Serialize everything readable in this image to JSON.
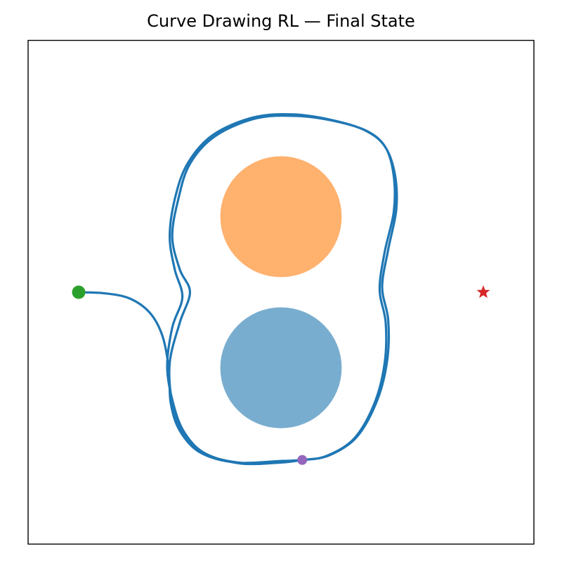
{
  "chart_data": {
    "type": "scatter",
    "title": "Curve Drawing RL — Final State",
    "xlabel": "",
    "ylabel": "",
    "xlim": [
      -5,
      5
    ],
    "ylim": [
      -5,
      5
    ],
    "grid": false,
    "axes_ticks": false,
    "colors": {
      "path": "#1f77b4",
      "obstacle_top": "#ffb16e",
      "obstacle_bottom": "#79adcf",
      "start": "#2ca02c",
      "agent": "#9467bd",
      "goal": "#d62728",
      "frame": "#000000"
    },
    "obstacles": [
      {
        "cx": 0.0,
        "cy": 1.5,
        "r": 1.2
      },
      {
        "cx": 0.0,
        "cy": -1.5,
        "r": 1.2
      }
    ],
    "start": {
      "x": -4.0,
      "y": 0.0
    },
    "goal": {
      "x": 4.0,
      "y": 0.0,
      "marker": "star"
    },
    "agent": {
      "x": 0.42,
      "y": -3.33
    },
    "path": [
      [
        -4.0,
        0.0
      ],
      [
        -3.5,
        -0.02
      ],
      [
        -3.0,
        -0.12
      ],
      [
        -2.6,
        -0.4
      ],
      [
        -2.35,
        -0.85
      ],
      [
        -2.22,
        -1.5
      ],
      [
        -2.18,
        -2.2
      ],
      [
        -2.0,
        -2.75
      ],
      [
        -1.6,
        -3.18
      ],
      [
        -0.9,
        -3.38
      ],
      [
        0.0,
        -3.35
      ],
      [
        0.42,
        -3.33
      ],
      [
        0.9,
        -3.25
      ],
      [
        1.45,
        -2.9
      ],
      [
        1.85,
        -2.2
      ],
      [
        2.05,
        -1.4
      ],
      [
        2.07,
        -0.6
      ],
      [
        1.95,
        0.05
      ],
      [
        2.05,
        0.8
      ],
      [
        2.23,
        1.6
      ],
      [
        2.23,
        2.3
      ],
      [
        2.07,
        2.87
      ],
      [
        1.7,
        3.2
      ],
      [
        1.05,
        3.4
      ],
      [
        0.3,
        3.5
      ],
      [
        -0.5,
        3.45
      ],
      [
        -1.3,
        3.1
      ],
      [
        -1.8,
        2.55
      ],
      [
        -2.03,
        1.85
      ],
      [
        -2.15,
        1.1
      ],
      [
        -2.0,
        0.45
      ],
      [
        -1.8,
        0.0
      ],
      [
        -2.0,
        -0.6
      ],
      [
        -2.2,
        -1.4
      ],
      [
        -2.15,
        -2.2
      ],
      [
        -1.95,
        -2.75
      ],
      [
        -1.55,
        -3.18
      ],
      [
        -0.85,
        -3.38
      ],
      [
        0.0,
        -3.36
      ],
      [
        0.42,
        -3.33
      ],
      [
        0.95,
        -3.24
      ],
      [
        1.5,
        -2.87
      ],
      [
        1.9,
        -2.15
      ],
      [
        2.1,
        -1.35
      ],
      [
        2.12,
        -0.55
      ],
      [
        2.0,
        0.1
      ],
      [
        2.12,
        0.85
      ],
      [
        2.28,
        1.65
      ],
      [
        2.25,
        2.35
      ],
      [
        2.05,
        2.9
      ],
      [
        1.65,
        3.22
      ],
      [
        1.0,
        3.42
      ],
      [
        0.25,
        3.53
      ],
      [
        -0.55,
        3.47
      ],
      [
        -1.35,
        3.12
      ],
      [
        -1.85,
        2.55
      ],
      [
        -2.1,
        1.85
      ],
      [
        -2.2,
        1.1
      ],
      [
        -2.1,
        0.45
      ],
      [
        -1.95,
        -0.1
      ],
      [
        -2.15,
        -0.7
      ],
      [
        -2.25,
        -1.5
      ],
      [
        -2.12,
        -2.25
      ],
      [
        -1.9,
        -2.8
      ],
      [
        -1.5,
        -3.2
      ],
      [
        -0.8,
        -3.4
      ],
      [
        0.0,
        -3.38
      ],
      [
        0.42,
        -3.33
      ]
    ]
  }
}
